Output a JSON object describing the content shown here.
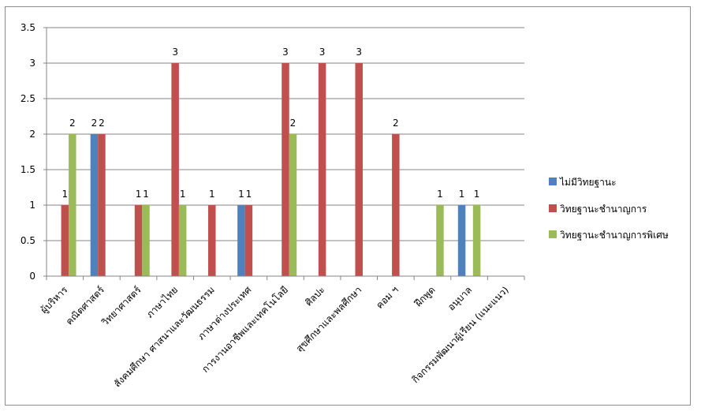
{
  "colors": {
    "series1": "#4f81bd",
    "series2": "#c0504d",
    "series3": "#9bbb59",
    "grid": "#868686",
    "axis": "#868686"
  },
  "chart_data": {
    "type": "bar",
    "categories": [
      "ผู้บริหาร",
      "คณิตศาสตร์",
      "วิทยาศาสตร์",
      "ภาษาไทย",
      "สังคมศึกษา ศาสนาและวัฒนธรรม",
      "ภาษาต่างประเทศ",
      "การงานอาชีพและเทคโนโลยี",
      "ศิลปะ",
      "สุขศึกษาและพลศึกษา",
      "คอม ฯ",
      "ฝึกพูด",
      "อนุบาล",
      "กิจกรรมพัฒนาผู้เรียน (แนะแนว)"
    ],
    "series": [
      {
        "name": "ไม่มีวิทยฐานะ",
        "values": [
          null,
          2,
          null,
          null,
          null,
          1,
          null,
          null,
          null,
          null,
          null,
          1,
          null
        ]
      },
      {
        "name": "วิทยฐานะชำนาญการ",
        "values": [
          1,
          2,
          1,
          3,
          1,
          1,
          3,
          3,
          3,
          2,
          null,
          null,
          null
        ]
      },
      {
        "name": "วิทยฐานะชำนาญการพิเศษ",
        "values": [
          2,
          null,
          1,
          1,
          null,
          null,
          2,
          null,
          null,
          null,
          1,
          1,
          null
        ]
      }
    ],
    "yticks": [
      "0",
      "0.5",
      "1",
      "1.5",
      "2",
      "2.5",
      "3",
      "3.5"
    ],
    "ylim": [
      0,
      3.5
    ],
    "grid": true,
    "legend_position": "right",
    "title": "",
    "xlabel": "",
    "ylabel": ""
  }
}
